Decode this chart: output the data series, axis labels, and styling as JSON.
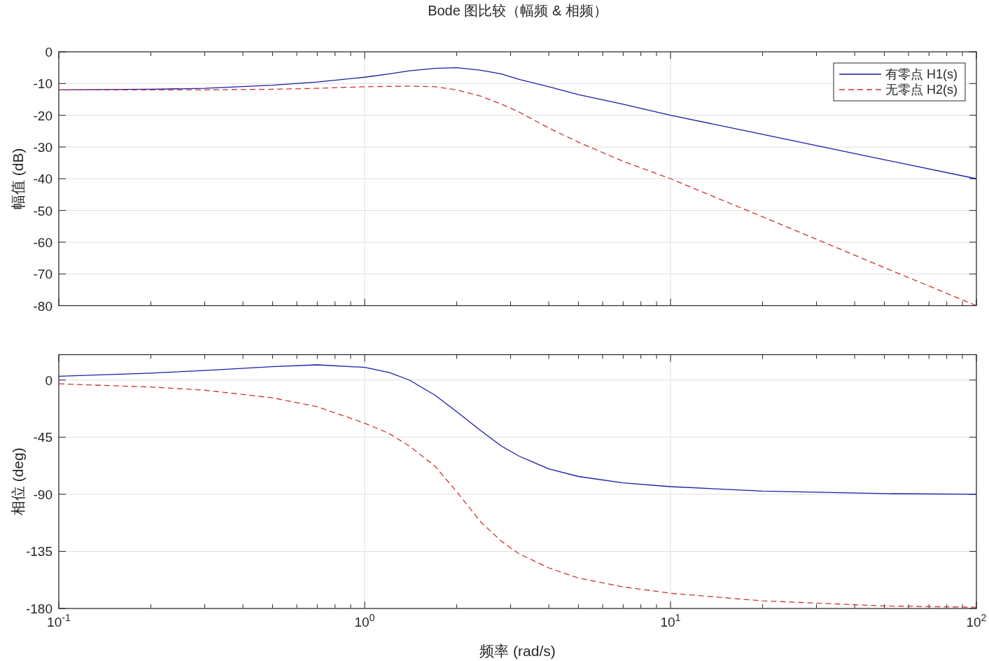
{
  "chart_data": [
    {
      "type": "line",
      "title": "Bode 图比较（幅频 & 相频）",
      "ylabel": "幅值 (dB)",
      "log": "x",
      "grid": true,
      "legend": "top right",
      "marker": "none",
      "tick_labels": "y",
      "x": [
        0.1,
        0.2,
        0.3,
        0.5,
        0.7,
        1,
        1.2,
        1.4,
        1.7,
        2,
        2.4,
        2.8,
        3.2,
        4,
        5,
        7,
        10,
        20,
        50,
        100
      ],
      "xlim": [
        0.1,
        100
      ],
      "xticks": [
        {
          "value": 0.1,
          "label": null
        },
        {
          "value": 1,
          "label": null
        },
        {
          "value": 10,
          "label": null
        },
        {
          "value": 100,
          "label": null
        }
      ],
      "ylim": [
        -80,
        0
      ],
      "yticks": [
        0,
        -10,
        -20,
        -30,
        -40,
        -50,
        -60,
        -70,
        -80
      ],
      "series": [
        {
          "name": "有零点 H1(s)",
          "color": "#1c1ca6",
          "line_style": "solid",
          "values": [
            -12,
            -11.8,
            -11.5,
            -10.5,
            -9.5,
            -8,
            -7,
            -6,
            -5.2,
            -5,
            -5.8,
            -7,
            -8.7,
            -11,
            -13.5,
            -16.5,
            -20,
            -26,
            -34,
            -40
          ]
        },
        {
          "name": "无零点 H2(s)",
          "color": "#cc3333",
          "line_style": "dashed",
          "values": [
            -12,
            -12,
            -12,
            -11.8,
            -11.5,
            -11,
            -10.9,
            -10.8,
            -11,
            -12,
            -14,
            -16.5,
            -19,
            -24,
            -28.5,
            -34.5,
            -40,
            -52,
            -68,
            -80
          ]
        }
      ]
    },
    {
      "type": "line",
      "xlabel": "频率 (rad/s)",
      "ylabel": "相位 (deg)",
      "log": "x",
      "grid": true,
      "marker": "none",
      "x": [
        0.1,
        0.2,
        0.3,
        0.5,
        0.7,
        1,
        1.2,
        1.4,
        1.7,
        2,
        2.4,
        2.8,
        3.2,
        4,
        5,
        7,
        10,
        20,
        50,
        100
      ],
      "xlim": [
        0.1,
        100
      ],
      "xticks": [
        {
          "value": 0.1,
          "label": "10$^{-1}$"
        },
        {
          "value": 1,
          "label": "10$^{0}$"
        },
        {
          "value": 10,
          "label": "10$^{1}$"
        },
        {
          "value": 100,
          "label": "10$^{2}$"
        }
      ],
      "ylim": [
        -180,
        20
      ],
      "yticks": [
        0,
        -45,
        -90,
        -135,
        -180
      ],
      "series": [
        {
          "color": "#1c1ca6",
          "line_style": "solid",
          "values": [
            3,
            5.5,
            7.5,
            10.5,
            12,
            10,
            6,
            0,
            -12,
            -25,
            -40,
            -52,
            -60,
            -70,
            -76,
            -81,
            -84,
            -87.5,
            -89.5,
            -90
          ]
        },
        {
          "color": "#cc3333",
          "line_style": "dashed",
          "values": [
            -3,
            -5.5,
            -8,
            -14,
            -21,
            -34,
            -42,
            -52,
            -68,
            -88,
            -112,
            -127,
            -137,
            -148,
            -156,
            -163,
            -168,
            -174,
            -178,
            -179
          ]
        }
      ]
    }
  ]
}
